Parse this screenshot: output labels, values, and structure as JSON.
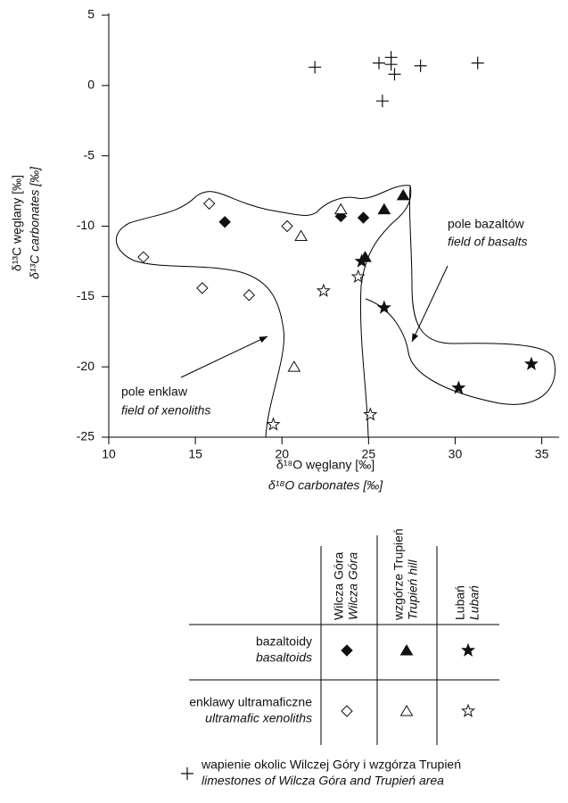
{
  "chart_data": {
    "type": "scatter",
    "xlabel": "δ¹⁸O węglany [‰]",
    "xlabel_en": "δ¹⁸O carbonates [‰]",
    "ylabel": "δ¹³C węglany [‰]",
    "ylabel_en": "δ¹³C carbonates [‰]",
    "xlim": [
      10,
      36
    ],
    "xticks": [
      10,
      15,
      20,
      25,
      30,
      35
    ],
    "ylim": [
      -25,
      5
    ],
    "yticks": [
      5,
      0,
      -5,
      -10,
      -15,
      -20,
      -25
    ],
    "annotations": [
      {
        "text": "pole bazaltów",
        "text_en": "field of basalts"
      },
      {
        "text": "pole enklaw",
        "text_en": "field of xenoliths"
      }
    ],
    "series": [
      {
        "marker": "diamond",
        "filled": true,
        "color": "#111111",
        "x": [
          16.7,
          23.4,
          24.7
        ],
        "y": [
          -9.7,
          -9.3,
          -9.4
        ]
      },
      {
        "marker": "triangle",
        "filled": true,
        "color": "#111111",
        "x": [
          27.0,
          25.9,
          24.8
        ],
        "y": [
          -7.8,
          -8.8,
          -12.2
        ]
      },
      {
        "marker": "star",
        "filled": true,
        "color": "#111111",
        "x": [
          24.6,
          25.9,
          30.2,
          34.4
        ],
        "y": [
          -12.5,
          -15.8,
          -21.5,
          -19.8
        ]
      },
      {
        "marker": "diamond",
        "filled": false,
        "color": "#111111",
        "x": [
          12.0,
          15.8,
          15.4,
          18.1,
          20.3
        ],
        "y": [
          -12.2,
          -8.4,
          -14.4,
          -14.9,
          -10.0
        ]
      },
      {
        "marker": "triangle",
        "filled": false,
        "color": "#111111",
        "x": [
          23.4,
          21.1,
          20.7
        ],
        "y": [
          -8.8,
          -10.7,
          -20.0
        ]
      },
      {
        "marker": "star",
        "filled": false,
        "color": "#111111",
        "x": [
          22.4,
          24.4,
          19.5,
          25.1
        ],
        "y": [
          -14.6,
          -13.6,
          -24.1,
          -23.4
        ]
      },
      {
        "marker": "plus",
        "filled": false,
        "color": "#111111",
        "x": [
          21.9,
          25.6,
          26.3,
          26.3,
          26.5,
          28.0,
          25.8,
          31.3
        ],
        "y": [
          1.3,
          1.6,
          2.0,
          1.5,
          0.8,
          1.4,
          -1.1,
          1.6
        ]
      }
    ],
    "legend": {
      "columns": [
        {
          "label": "Wilcza Góra",
          "label_en": "Wilcza Góra"
        },
        {
          "label": "wzgórze Trupień",
          "label_en": "Trupień hill"
        },
        {
          "label": "Lubań",
          "label_en": "Lubań"
        }
      ],
      "rows": [
        {
          "label": "bazaltoidy",
          "label_en": "basaltoids"
        },
        {
          "label": "enklawy ultramaficzne",
          "label_en": "ultramafic xenoliths"
        }
      ],
      "note": {
        "label": "wapienie okolic Wilczej Góry i wzgórza Trupień",
        "label_en": "limestones of Wilcza Góra and Trupień area"
      }
    }
  }
}
